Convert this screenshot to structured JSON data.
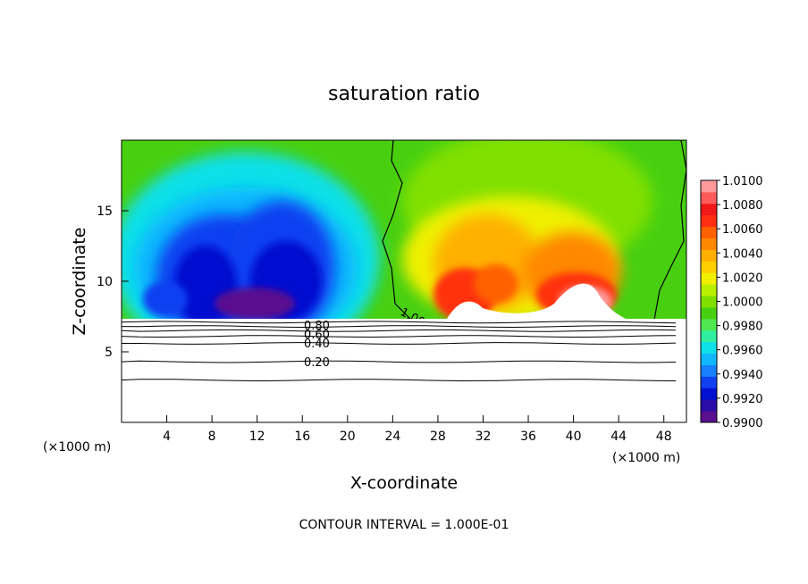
{
  "chart_data": {
    "type": "heatmap",
    "title": "saturation ratio",
    "xlabel": "X-coordinate",
    "ylabel": "Z-coordinate",
    "x_unit_left": "(×1000 m)",
    "x_unit_right": "(×1000 m)",
    "xlim": [
      0,
      50
    ],
    "ylim": [
      0,
      20
    ],
    "x_ticks": [
      4,
      8,
      12,
      16,
      20,
      24,
      28,
      32,
      36,
      40,
      44,
      48
    ],
    "x_tick_labels": [
      "4",
      "8",
      "12",
      "16",
      "20",
      "24",
      "28",
      "32",
      "36",
      "40",
      "44",
      "48"
    ],
    "y_ticks": [
      5,
      10,
      15
    ],
    "y_tick_labels": [
      "5",
      "10",
      "15"
    ],
    "footer": "CONTOUR INTERVAL = 1.000E-01",
    "contour_labels": [
      "1.00",
      "0.80",
      "0.60",
      "0.40",
      "0.20"
    ],
    "colorbar": {
      "min": 0.99,
      "max": 1.01,
      "labels": [
        "1.0100",
        "1.0080",
        "1.0060",
        "1.0040",
        "1.0020",
        "1.0000",
        "0.9980",
        "0.9960",
        "0.9940",
        "0.9920",
        "0.9900"
      ],
      "colors": [
        "#5a0f8e",
        "#2a0ca8",
        "#0010d0",
        "#1040f0",
        "#1880ff",
        "#10b8ff",
        "#10e0e8",
        "#30f0a0",
        "#50e850",
        "#48d010",
        "#80e000",
        "#b8f000",
        "#f0f000",
        "#ffd000",
        "#ffb000",
        "#ff8800",
        "#ff6000",
        "#ff3010",
        "#f01818",
        "#ff5a5a",
        "#ff9a9a"
      ]
    },
    "cloud_base_z": 7.3,
    "contour_levels_z": [
      3.0,
      4.3,
      5.6,
      6.1,
      6.5,
      6.8,
      7.1
    ],
    "dry_region_x": [
      1,
      20
    ],
    "moist_region_x": [
      24,
      48
    ]
  }
}
